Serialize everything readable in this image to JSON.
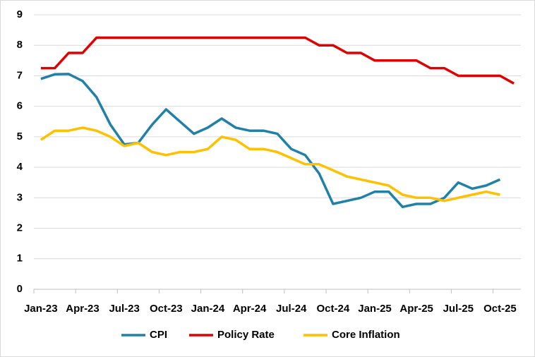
{
  "chart_data": {
    "type": "line",
    "categories": [
      "Jan-23",
      null,
      null,
      "Apr-23",
      null,
      null,
      "Jul-23",
      null,
      null,
      "Oct-23",
      null,
      null,
      "Jan-24",
      null,
      null,
      "Apr-24",
      null,
      null,
      "Jul-24",
      null,
      null,
      "Oct-24",
      null,
      null,
      "Jan-25",
      null,
      null,
      "Apr-25",
      null,
      null,
      "Jul-25",
      null,
      null,
      "Oct-25",
      null
    ],
    "series": [
      {
        "name": "CPI",
        "color": "#2180a8",
        "values": [
          6.9,
          7.05,
          7.06,
          6.83,
          6.3,
          5.4,
          4.75,
          4.8,
          5.4,
          5.9,
          5.5,
          5.1,
          5.3,
          5.6,
          5.3,
          5.2,
          5.2,
          5.1,
          4.6,
          4.4,
          3.8,
          2.8,
          2.9,
          3.0,
          3.2,
          3.2,
          2.7,
          2.8,
          2.8,
          3.0,
          3.5,
          3.3,
          3.4,
          3.6,
          null
        ]
      },
      {
        "name": "Policy Rate",
        "color": "#e00000",
        "values": [
          7.25,
          7.25,
          7.75,
          7.75,
          8.25,
          8.25,
          8.25,
          8.25,
          8.25,
          8.25,
          8.25,
          8.25,
          8.25,
          8.25,
          8.25,
          8.25,
          8.25,
          8.25,
          8.25,
          8.25,
          8.0,
          8.0,
          7.75,
          7.75,
          7.5,
          7.5,
          7.5,
          7.5,
          7.25,
          7.25,
          7.0,
          7.0,
          7.0,
          7.0,
          6.75
        ]
      },
      {
        "name": "Core Inflation",
        "color": "#ffc000",
        "values": [
          4.9,
          5.2,
          5.2,
          5.3,
          5.2,
          5.0,
          4.7,
          4.8,
          4.5,
          4.4,
          4.5,
          4.5,
          4.6,
          5.0,
          4.9,
          4.6,
          4.6,
          4.5,
          4.3,
          4.1,
          4.1,
          3.9,
          3.7,
          3.6,
          3.5,
          3.4,
          3.1,
          3.0,
          3.0,
          2.9,
          3.0,
          3.1,
          3.2,
          3.1,
          null
        ]
      }
    ],
    "ylim": [
      0,
      9
    ],
    "yticks": [
      0,
      1,
      2,
      3,
      4,
      5,
      6,
      7,
      8,
      9
    ],
    "grid": true,
    "legend": "bottom"
  }
}
